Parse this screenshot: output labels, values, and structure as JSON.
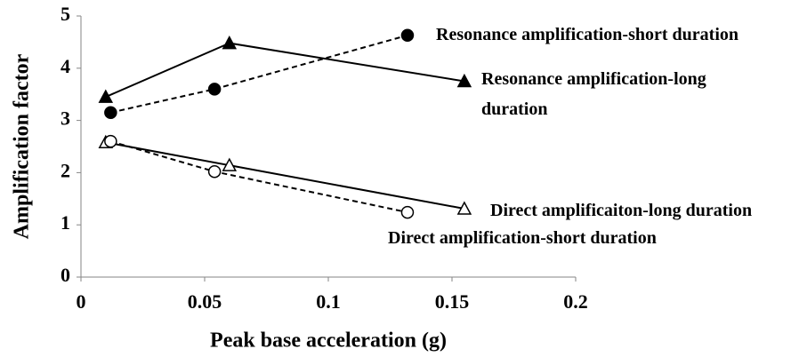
{
  "chart_data": {
    "type": "line",
    "x_label": "Peak base acceleration (g)",
    "y_label": "Amplification factor",
    "xlim": [
      0,
      0.2
    ],
    "xticks": [
      0,
      0.05,
      0.1,
      0.15,
      0.2
    ],
    "ylim": [
      0,
      5
    ],
    "yticks": [
      0,
      1,
      2,
      3,
      4,
      5
    ],
    "grid": false,
    "series": [
      {
        "name": "Resonance amplification-short duration",
        "color": "#000000",
        "dashed": true,
        "marker": "circle",
        "filled": true,
        "x": [
          0.012,
          0.054,
          0.132
        ],
        "values": [
          3.15,
          3.6,
          4.63
        ]
      },
      {
        "name": "Resonance amplification-long duration",
        "color": "#000000",
        "dashed": false,
        "marker": "triangle",
        "filled": true,
        "x": [
          0.01,
          0.06,
          0.155
        ],
        "values": [
          3.45,
          4.48,
          3.75
        ]
      },
      {
        "name": "Direct amplificaiton-long duration",
        "color": "#000000",
        "dashed": false,
        "marker": "triangle",
        "filled": false,
        "x": [
          0.01,
          0.06,
          0.155
        ],
        "values": [
          2.58,
          2.14,
          1.31
        ]
      },
      {
        "name": "Direct amplification-short duration",
        "color": "#000000",
        "dashed": true,
        "marker": "circle",
        "filled": false,
        "x": [
          0.012,
          0.054,
          0.132
        ],
        "values": [
          2.6,
          2.02,
          1.24
        ]
      }
    ]
  }
}
